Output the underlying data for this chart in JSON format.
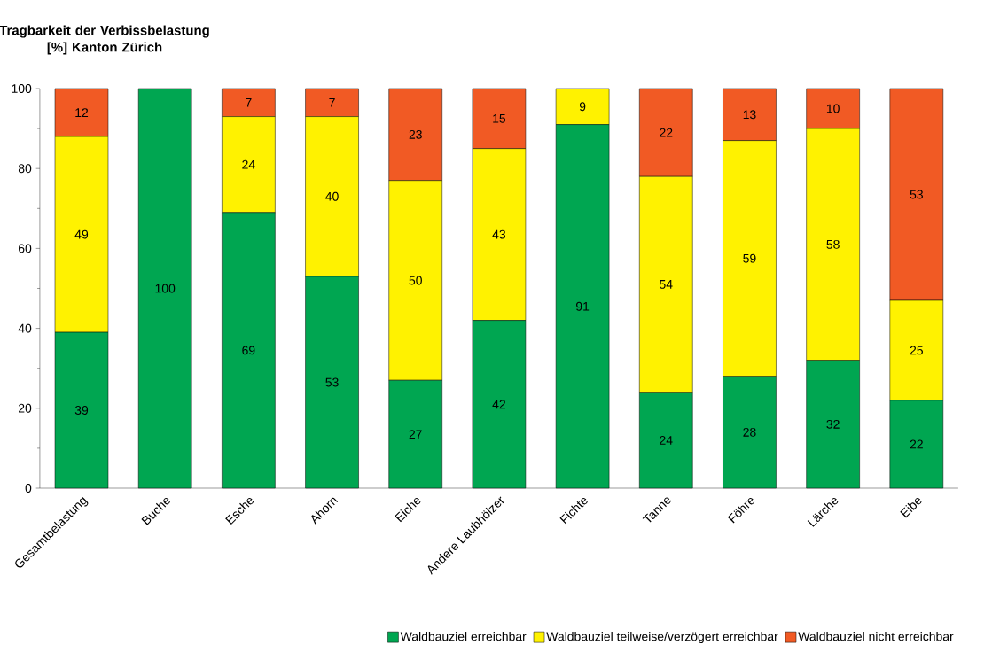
{
  "chart_data": {
    "type": "bar",
    "stacked": true,
    "ylabel": "Tragbarkeit der Verbissbelastung [%] Kanton Zürich",
    "categories": [
      "Gesamtbelastung",
      "Buche",
      "Esche",
      "Ahorn",
      "Eiche",
      "Andere Laubhölzer",
      "Fichte",
      "Tanne",
      "Föhre",
      "Lärche",
      "Eibe"
    ],
    "series": [
      {
        "name": "Waldbauziel erreichbar",
        "color": "#00a651",
        "values": [
          39,
          100,
          69,
          53,
          27,
          42,
          91,
          24,
          28,
          32,
          22
        ],
        "value_labels": [
          "39",
          "100",
          "69",
          "53",
          "27",
          "42",
          "91",
          "24",
          "28",
          "32",
          "22"
        ]
      },
      {
        "name": "Waldbauziel teilweise/verzögert erreichbar",
        "color": "#fff200",
        "values": [
          49,
          0,
          24,
          40,
          50,
          43,
          9,
          54,
          59,
          58,
          25
        ],
        "value_labels": [
          "49",
          null,
          "24",
          "40",
          "50",
          "43",
          "9",
          "54",
          "59",
          "58",
          "25"
        ]
      },
      {
        "name": "Waldbauziel nicht erreichbar",
        "color": "#f15a24",
        "values": [
          12,
          0,
          7,
          7,
          23,
          15,
          0,
          22,
          13,
          10,
          53
        ],
        "value_labels": [
          "12",
          null,
          "7",
          "7",
          "23",
          "15",
          null,
          "22",
          "13",
          "10",
          "53"
        ]
      }
    ],
    "ylim": [
      0,
      100
    ],
    "yticks": [
      0,
      20,
      40,
      60,
      80,
      100
    ],
    "grid": false,
    "legend": "bottom"
  }
}
